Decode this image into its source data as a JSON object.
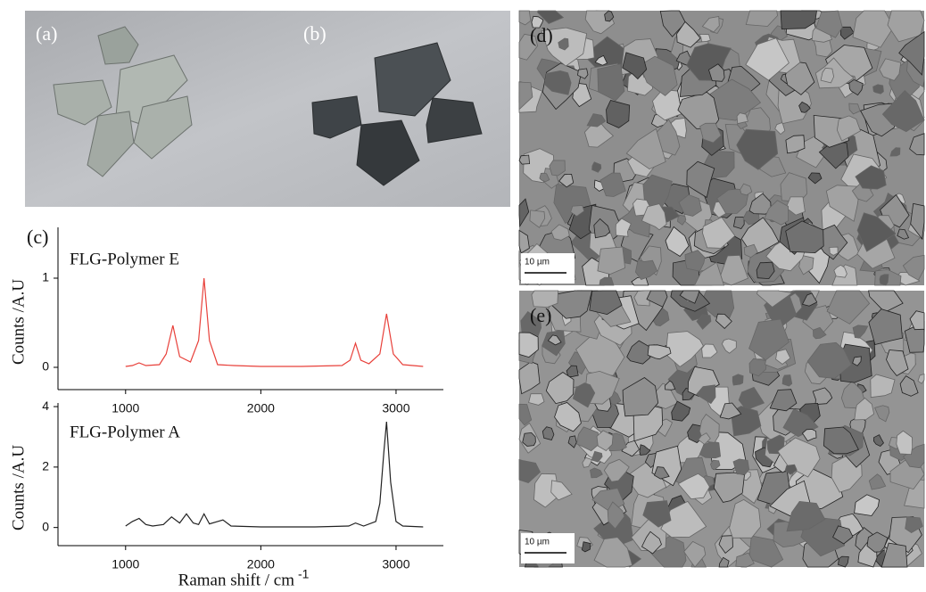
{
  "panels": {
    "a": "(a)",
    "b": "(b)",
    "c": "(c)",
    "d": "(d)",
    "e": "(e)"
  },
  "scale_bars": [
    "10 µm",
    "10 µm"
  ],
  "chart_data": [
    {
      "type": "line",
      "y_label": "Counts  /A.U",
      "xlim": [
        500,
        3350
      ],
      "xticks": [
        1000,
        2000,
        3000
      ],
      "ylim": [
        -0.25,
        1.57
      ],
      "yticks": [
        0,
        1
      ],
      "x": [
        1000,
        1050,
        1100,
        1150,
        1250,
        1300,
        1350,
        1400,
        1480,
        1540,
        1580,
        1620,
        1680,
        1800,
        2000,
        2300,
        2600,
        2660,
        2700,
        2740,
        2800,
        2880,
        2930,
        2980,
        3050,
        3200
      ],
      "series": [
        {
          "name": "FLG-Polymer  E",
          "color": "#e8403a",
          "values": [
            0.01,
            0.02,
            0.05,
            0.02,
            0.03,
            0.15,
            0.47,
            0.12,
            0.06,
            0.3,
            1.0,
            0.3,
            0.03,
            0.02,
            0.01,
            0.01,
            0.02,
            0.08,
            0.27,
            0.08,
            0.04,
            0.15,
            0.6,
            0.15,
            0.03,
            0.01
          ]
        }
      ]
    },
    {
      "type": "line",
      "y_label": "Counts  /A.U",
      "x_label": "Raman shift  / cm",
      "x_label_sup": "-1",
      "xlim": [
        500,
        3350
      ],
      "xticks": [
        1000,
        2000,
        3000
      ],
      "ylim": [
        -0.6,
        4.12
      ],
      "yticks": [
        0,
        2,
        4
      ],
      "x": [
        1000,
        1050,
        1100,
        1150,
        1200,
        1280,
        1340,
        1400,
        1450,
        1500,
        1540,
        1580,
        1620,
        1680,
        1720,
        1780,
        2000,
        2400,
        2650,
        2700,
        2760,
        2850,
        2880,
        2910,
        2930,
        2960,
        3000,
        3050,
        3200
      ],
      "series": [
        {
          "name": "FLG-Polymer  A",
          "color": "#222222",
          "values": [
            0.05,
            0.2,
            0.3,
            0.1,
            0.05,
            0.1,
            0.35,
            0.15,
            0.45,
            0.15,
            0.1,
            0.45,
            0.12,
            0.2,
            0.25,
            0.05,
            0.02,
            0.02,
            0.05,
            0.15,
            0.05,
            0.2,
            0.8,
            2.5,
            3.5,
            1.5,
            0.2,
            0.05,
            0.02
          ]
        }
      ]
    }
  ]
}
